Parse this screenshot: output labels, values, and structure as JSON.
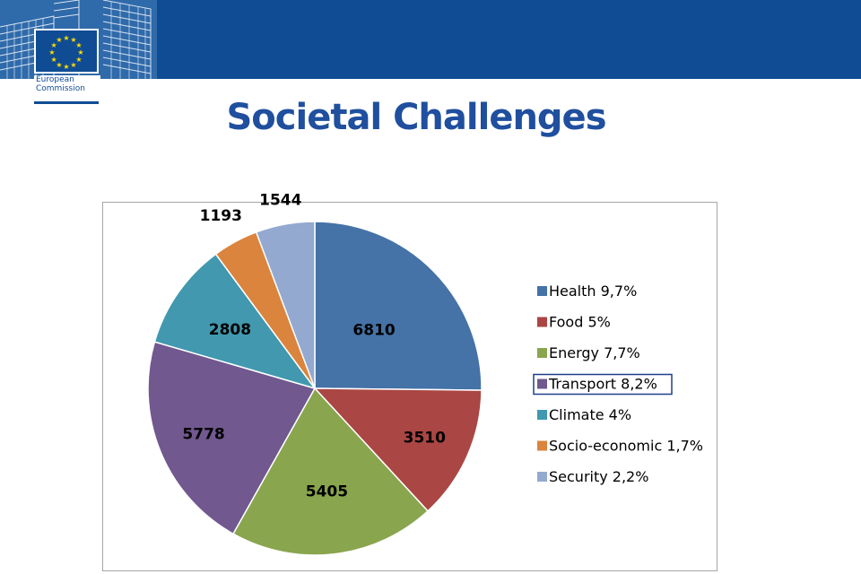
{
  "header": {
    "logo_line1": "European",
    "logo_line2": "Commission"
  },
  "title": "Societal Challenges",
  "colors": {
    "header_bg": "#0f4c94",
    "title": "#1f4f9e",
    "flag_stars": "#ffdd00"
  },
  "chart_data": {
    "type": "pie",
    "start_angle_deg": 0,
    "direction": "clockwise",
    "legend_position": "right",
    "slices": [
      {
        "label": "Health",
        "legend": "Health  9,7%",
        "value": 6810,
        "color": "#4572a7"
      },
      {
        "label": "Food",
        "legend": "Food  5%",
        "value": 3510,
        "color": "#aa4643"
      },
      {
        "label": "Energy",
        "legend": "Energy  7,7%",
        "value": 5405,
        "color": "#89a54e"
      },
      {
        "label": "Transport",
        "legend": "Transport  8,2%",
        "value": 5778,
        "color": "#71588f",
        "highlighted": true
      },
      {
        "label": "Climate",
        "legend": "Climate  4%",
        "value": 2808,
        "color": "#4198af"
      },
      {
        "label": "Socio-economic",
        "legend": "Socio-economic  1,7%",
        "value": 1193,
        "color": "#db843d"
      },
      {
        "label": "Security",
        "legend": "Security  2,2%",
        "value": 1544,
        "color": "#93a9cf"
      }
    ]
  }
}
